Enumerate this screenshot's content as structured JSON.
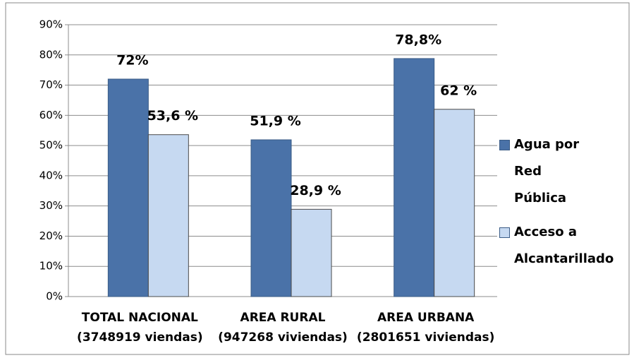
{
  "chart_data": {
    "type": "bar",
    "categories": [
      [
        "TOTAL NACIONAL",
        "(3748919 viendas)"
      ],
      [
        "AREA RURAL",
        "(947268 viviendas)"
      ],
      [
        "AREA URBANA",
        "(2801651 viviendas)"
      ]
    ],
    "series": [
      {
        "name": "Agua por Red Pública",
        "color": "#4a72a8",
        "values": [
          72,
          51.9,
          78.8
        ],
        "value_labels": [
          "72%",
          "51,9 %",
          "78,8%"
        ]
      },
      {
        "name": "Acceso a Alcantarillado",
        "color": "#c6d9f1",
        "values": [
          53.6,
          28.9,
          62
        ],
        "value_labels": [
          "53,6 %",
          "28,9 %",
          "62 %"
        ]
      }
    ],
    "ylim": [
      0,
      90
    ],
    "yticks": [
      {
        "value": 0,
        "label": "0%"
      },
      {
        "value": 10,
        "label": "10%"
      },
      {
        "value": 20,
        "label": "20%"
      },
      {
        "value": 30,
        "label": "30%"
      },
      {
        "value": 40,
        "label": "40%"
      },
      {
        "value": 50,
        "label": "50%"
      },
      {
        "value": 60,
        "label": "60%"
      },
      {
        "value": 70,
        "label": "70%"
      },
      {
        "value": 80,
        "label": "80%"
      },
      {
        "value": 90,
        "label": "90%"
      }
    ],
    "grid": true,
    "legend": "right"
  }
}
